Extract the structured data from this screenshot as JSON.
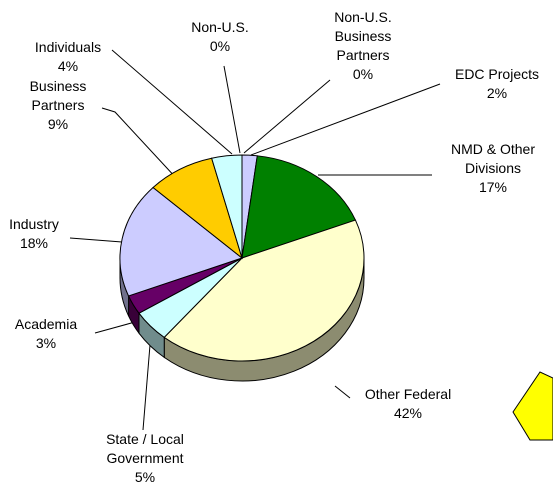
{
  "chart_data": {
    "type": "pie",
    "categories": [
      "Non-U.S.",
      "Non-U.S. Business Partners",
      "EDC Projects",
      "NMD & Other Divisions",
      "Other Federal",
      "State / Local Government",
      "Academia",
      "Industry",
      "Business Partners",
      "Individuals"
    ],
    "values": [
      0,
      0,
      2,
      17,
      42,
      5,
      3,
      18,
      9,
      4
    ],
    "value_labels": [
      "0%",
      "0%",
      "2%",
      "17%",
      "42%",
      "5%",
      "3%",
      "18%",
      "9%",
      "4%"
    ],
    "colors": [
      "#ccccff",
      "#ffffff",
      "#ccccff",
      "#008000",
      "#ffffcc",
      "#ccffff",
      "#660066",
      "#ccccff",
      "#ffcc00",
      "#ccffff"
    ]
  }
}
